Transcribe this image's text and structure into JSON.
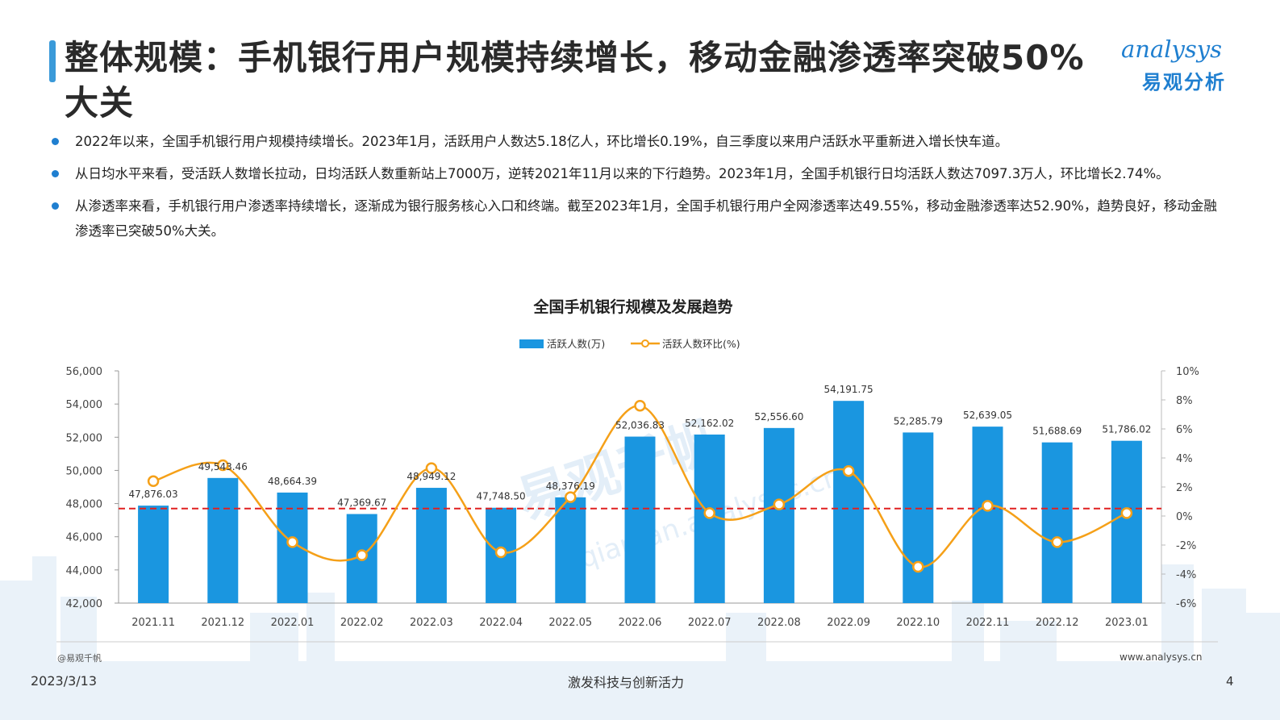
{
  "header": {
    "title": "整体规模：手机银行用户规模持续增长，移动金融渗透率突破50%大关",
    "logo_text": "analysys",
    "logo_cn": "易观分析"
  },
  "bullets": [
    "2022年以来，全国手机银行用户规模持续增长。2023年1月，活跃用户人数达5.18亿人，环比增长0.19%，自三季度以来用户活跃水平重新进入增长快车道。",
    "从日均水平来看，受活跃人数增长拉动，日均活跃人数重新站上7000万，逆转2021年11月以来的下行趋势。2023年1月，全国手机银行日均活跃人数达7097.3万人，环比增长2.74%。",
    "从渗透率来看，手机银行用户渗透率持续增长，逐渐成为银行服务核心入口和终端。截至2023年1月，全国手机银行用户全网渗透率达49.55%，移动金融渗透率达52.90%，趋势良好，移动金融渗透率已突破50%大关。"
  ],
  "chart_data": {
    "type": "bar+line",
    "title": "全国手机银行规模及发展趋势",
    "categories": [
      "2021.11",
      "2021.12",
      "2022.01",
      "2022.02",
      "2022.03",
      "2022.04",
      "2022.05",
      "2022.06",
      "2022.07",
      "2022.08",
      "2022.09",
      "2022.10",
      "2022.11",
      "2022.12",
      "2023.01"
    ],
    "series": [
      {
        "name": "活跃人数(万)",
        "type": "bar",
        "axis": "left",
        "values": [
          47876.03,
          49543.46,
          48664.39,
          47369.67,
          48949.12,
          47748.5,
          48376.19,
          52036.83,
          52162.02,
          52556.6,
          54191.75,
          52285.79,
          52639.05,
          51688.69,
          51786.02
        ],
        "labels": [
          "47,876.03",
          "49,543.46",
          "48,664.39",
          "47,369.67",
          "48,949.12",
          "47,748.50",
          "48,376.19",
          "52,036.83",
          "52,162.02",
          "52,556.60",
          "54,191.75",
          "52,285.79",
          "52,639.05",
          "51,688.69",
          "51,786.02"
        ]
      },
      {
        "name": "活跃人数环比(%)",
        "type": "line",
        "axis": "right",
        "values": [
          2.4,
          3.5,
          -1.8,
          -2.7,
          3.3,
          -2.5,
          1.3,
          7.6,
          0.2,
          0.8,
          3.1,
          -3.5,
          0.7,
          -1.8,
          0.2
        ]
      }
    ],
    "y_left": {
      "ylim": [
        42000,
        56000
      ],
      "ticks": [
        "42,000",
        "44,000",
        "46,000",
        "48,000",
        "50,000",
        "52,000",
        "54,000",
        "56,000"
      ]
    },
    "y_right": {
      "ylim": [
        -6,
        10
      ],
      "ticks": [
        "-6%",
        "-4%",
        "-2%",
        "0%",
        "2%",
        "4%",
        "6%",
        "8%",
        "10%"
      ]
    },
    "reference_line": {
      "axis": "left",
      "value": 47700,
      "style": "dashed",
      "color": "#e02020"
    },
    "legend": "top-center",
    "grid": false,
    "colors": {
      "bar": "#1a96e0",
      "line": "#f5a018",
      "marker_fill": "#ffffff"
    }
  },
  "watermark": {
    "text_cn": "易观千帆",
    "text_en": "qianfan.analysys.cn"
  },
  "footer": {
    "source": "@易观千帆",
    "site": "www.analysys.cn",
    "date": "2023/3/13",
    "slogan": "激发科技与创新活力",
    "page": "4"
  }
}
